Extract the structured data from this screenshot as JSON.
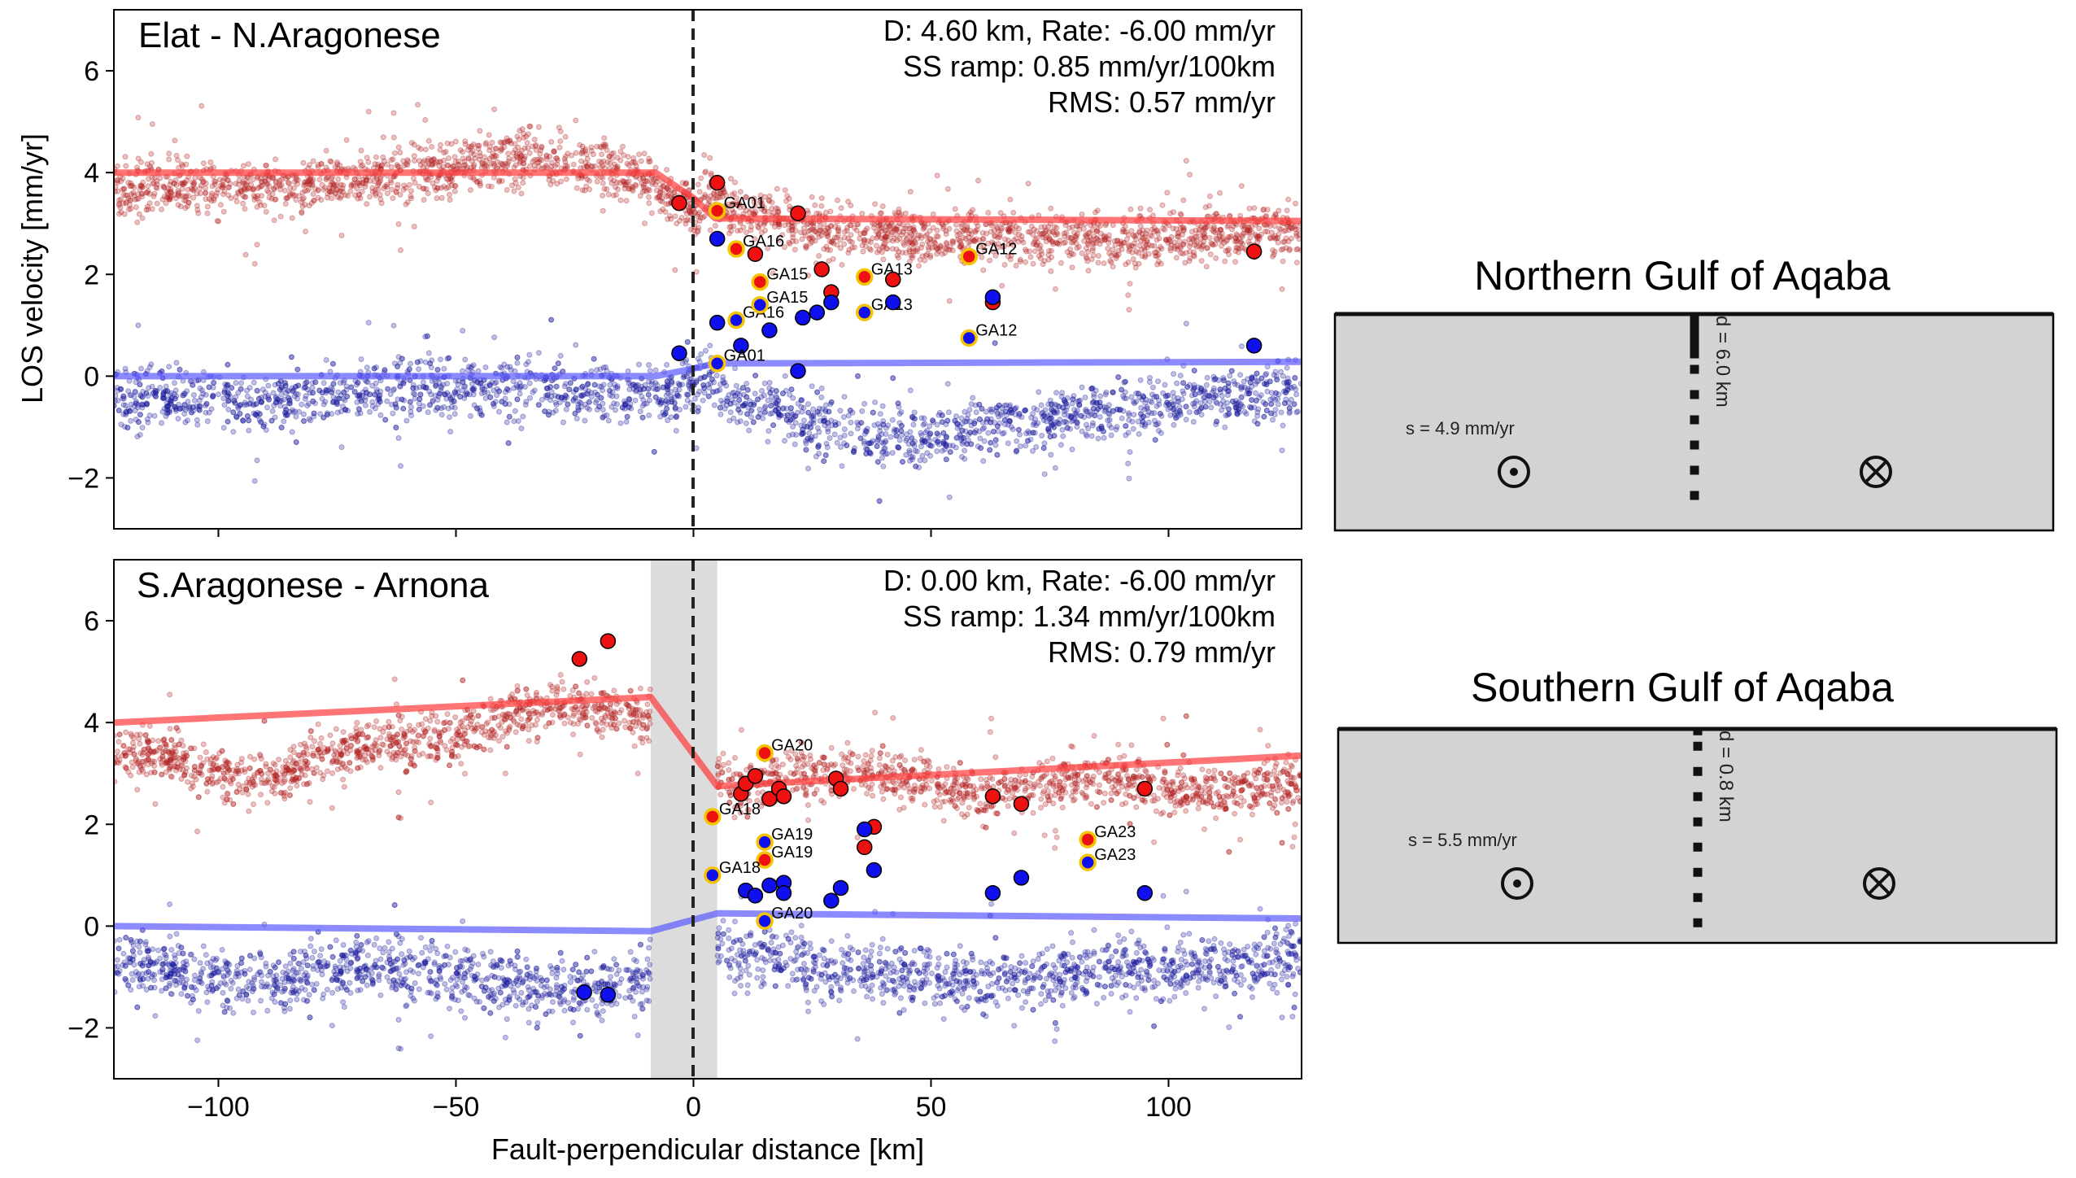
{
  "figure": {
    "x_axis_label": "Fault-perpendicular distance [km]",
    "y_axis_label": "LOS velocity [mm/yr]",
    "x_ticks": [
      -100,
      -50,
      0,
      50,
      100
    ],
    "y_ticks": [
      -2,
      0,
      2,
      4,
      6
    ]
  },
  "colors": {
    "red_points": "#b22222",
    "blue_points": "#1c1c9e",
    "red_model": "#ff3b3b",
    "blue_model": "#5a5aff",
    "station_red": "#ee1111",
    "station_blue": "#1010ee",
    "station_ring": "#f5c400",
    "fault_zone": "#dcdcdc",
    "diagram_fill": "#d3d3d3"
  },
  "chart_data": [
    {
      "type": "scatter",
      "title": "Elat - N.Aragonese",
      "annotation_lines": [
        "D: 4.60 km, Rate: -6.00 mm/yr",
        "SS ramp: 0.85 mm/yr/100km",
        "RMS: 0.57 mm/yr"
      ],
      "xlim": [
        -122,
        128
      ],
      "ylim": [
        -3,
        7.2
      ],
      "fault_zone": null,
      "model_lines": [
        {
          "color": "red",
          "x": [
            -122,
            -8,
            0,
            4.6,
            128
          ],
          "y": [
            4.0,
            4.0,
            3.5,
            3.1,
            3.05
          ]
        },
        {
          "color": "blue",
          "x": [
            -122,
            -8,
            0,
            4.6,
            128
          ],
          "y": [
            0.0,
            0.0,
            0.15,
            0.25,
            0.28
          ]
        }
      ],
      "bands": [
        {
          "color": "red",
          "x": [
            -122,
            -100,
            -80,
            -60,
            -45,
            -35,
            -20,
            -10,
            -4,
            0,
            5,
            10,
            20,
            30,
            40,
            50,
            60,
            70,
            80,
            90,
            100,
            110,
            120,
            128
          ],
          "y": [
            3.7,
            3.7,
            3.8,
            3.95,
            4.2,
            4.3,
            4.15,
            3.85,
            3.5,
            3.3,
            3.5,
            3.2,
            2.95,
            2.85,
            2.8,
            2.7,
            2.75,
            2.65,
            2.7,
            2.65,
            2.75,
            2.8,
            2.8,
            2.85
          ],
          "spread": 0.75
        },
        {
          "color": "blue",
          "x": [
            -122,
            -110,
            -90,
            -70,
            -50,
            -30,
            -15,
            -5,
            0,
            5,
            10,
            20,
            30,
            40,
            50,
            60,
            70,
            80,
            90,
            100,
            110,
            120,
            128
          ],
          "y": [
            -0.4,
            -0.45,
            -0.5,
            -0.3,
            -0.2,
            -0.25,
            -0.3,
            -0.3,
            -0.1,
            -0.3,
            -0.5,
            -0.8,
            -1.0,
            -1.2,
            -1.15,
            -1.0,
            -0.9,
            -0.8,
            -0.65,
            -0.5,
            -0.4,
            -0.35,
            -0.3
          ],
          "spread": 0.85
        }
      ],
      "stations": [
        {
          "x": -3,
          "y": 3.4,
          "color": "red",
          "ring": false,
          "label": ""
        },
        {
          "x": 5,
          "y": 3.8,
          "color": "red",
          "ring": false,
          "label": ""
        },
        {
          "x": 5,
          "y": 3.25,
          "color": "red",
          "ring": true,
          "label": "GA01"
        },
        {
          "x": 5,
          "y": 2.7,
          "color": "blue",
          "ring": false,
          "label": ""
        },
        {
          "x": 9,
          "y": 2.5,
          "color": "red",
          "ring": true,
          "label": "GA16"
        },
        {
          "x": 13,
          "y": 2.4,
          "color": "red",
          "ring": false,
          "label": ""
        },
        {
          "x": 22,
          "y": 3.2,
          "color": "red",
          "ring": false,
          "label": ""
        },
        {
          "x": 27,
          "y": 2.1,
          "color": "red",
          "ring": false,
          "label": ""
        },
        {
          "x": 14,
          "y": 1.85,
          "color": "red",
          "ring": true,
          "label": "GA15"
        },
        {
          "x": 29,
          "y": 1.65,
          "color": "red",
          "ring": false,
          "label": ""
        },
        {
          "x": 36,
          "y": 1.95,
          "color": "red",
          "ring": true,
          "label": "GA13"
        },
        {
          "x": 42,
          "y": 1.9,
          "color": "red",
          "ring": false,
          "label": ""
        },
        {
          "x": 58,
          "y": 2.35,
          "color": "red",
          "ring": true,
          "label": "GA12"
        },
        {
          "x": 63,
          "y": 1.45,
          "color": "red",
          "ring": false,
          "label": ""
        },
        {
          "x": 118,
          "y": 2.45,
          "color": "red",
          "ring": false,
          "label": ""
        },
        {
          "x": 5,
          "y": 1.05,
          "color": "blue",
          "ring": false,
          "label": ""
        },
        {
          "x": 9,
          "y": 1.1,
          "color": "blue",
          "ring": true,
          "label": "GA16"
        },
        {
          "x": 14,
          "y": 1.4,
          "color": "blue",
          "ring": true,
          "label": "GA15"
        },
        {
          "x": 10,
          "y": 0.6,
          "color": "blue",
          "ring": false,
          "label": ""
        },
        {
          "x": 16,
          "y": 0.9,
          "color": "blue",
          "ring": false,
          "label": ""
        },
        {
          "x": 23,
          "y": 1.15,
          "color": "blue",
          "ring": false,
          "label": ""
        },
        {
          "x": 26,
          "y": 1.25,
          "color": "blue",
          "ring": false,
          "label": ""
        },
        {
          "x": 29,
          "y": 1.45,
          "color": "blue",
          "ring": false,
          "label": ""
        },
        {
          "x": 36,
          "y": 1.25,
          "color": "blue",
          "ring": true,
          "label": "GA13"
        },
        {
          "x": 42,
          "y": 1.45,
          "color": "blue",
          "ring": false,
          "label": ""
        },
        {
          "x": 58,
          "y": 0.75,
          "color": "blue",
          "ring": true,
          "label": "GA12"
        },
        {
          "x": 63,
          "y": 1.55,
          "color": "blue",
          "ring": false,
          "label": ""
        },
        {
          "x": -3,
          "y": 0.45,
          "color": "blue",
          "ring": false,
          "label": ""
        },
        {
          "x": 5,
          "y": 0.25,
          "color": "blue",
          "ring": true,
          "label": "GA01"
        },
        {
          "x": 22,
          "y": 0.1,
          "color": "blue",
          "ring": false,
          "label": ""
        },
        {
          "x": 118,
          "y": 0.6,
          "color": "blue",
          "ring": false,
          "label": ""
        }
      ]
    },
    {
      "type": "scatter",
      "title": "S.Aragonese - Arnona",
      "annotation_lines": [
        "D: 0.00 km, Rate: -6.00 mm/yr",
        "SS ramp: 1.34 mm/yr/100km",
        "RMS: 0.79 mm/yr"
      ],
      "xlim": [
        -122,
        128
      ],
      "ylim": [
        -3,
        7.2
      ],
      "fault_zone": [
        -9,
        5
      ],
      "model_lines": [
        {
          "color": "red",
          "x": [
            -122,
            -9,
            5,
            128
          ],
          "y": [
            4.0,
            4.5,
            2.75,
            3.35
          ]
        },
        {
          "color": "blue",
          "x": [
            -122,
            -9,
            5,
            128
          ],
          "y": [
            0.0,
            -0.1,
            0.25,
            0.15
          ]
        }
      ],
      "bands": [
        {
          "color": "red",
          "x": [
            -122,
            -110,
            -100,
            -90,
            -80,
            -70,
            -60,
            -50,
            -40,
            -30,
            -20,
            -10,
            5,
            10,
            20,
            30,
            40,
            50,
            60,
            70,
            80,
            90,
            100,
            110,
            120,
            128
          ],
          "y": [
            3.4,
            3.3,
            3.0,
            2.8,
            3.3,
            3.5,
            3.6,
            3.7,
            4.1,
            4.4,
            4.2,
            4.1,
            3.0,
            2.7,
            2.95,
            3.1,
            3.0,
            2.8,
            2.6,
            2.75,
            2.9,
            2.9,
            2.7,
            2.6,
            2.8,
            2.7
          ],
          "spread": 0.75
        },
        {
          "color": "blue",
          "x": [
            -122,
            -110,
            -100,
            -90,
            -80,
            -70,
            -60,
            -50,
            -40,
            -30,
            -20,
            -10,
            5,
            10,
            20,
            30,
            40,
            50,
            60,
            70,
            80,
            90,
            100,
            110,
            120,
            128
          ],
          "y": [
            -0.7,
            -0.9,
            -1.0,
            -1.2,
            -0.9,
            -0.8,
            -0.9,
            -1.0,
            -1.1,
            -1.2,
            -1.3,
            -1.0,
            -0.4,
            -0.6,
            -0.7,
            -0.8,
            -0.9,
            -1.0,
            -1.05,
            -1.0,
            -0.9,
            -0.8,
            -0.85,
            -0.8,
            -0.7,
            -0.6
          ],
          "spread": 0.9
        }
      ],
      "stations": [
        {
          "x": -24,
          "y": 5.25,
          "color": "red",
          "ring": false,
          "label": ""
        },
        {
          "x": -18,
          "y": 5.6,
          "color": "red",
          "ring": false,
          "label": ""
        },
        {
          "x": 15,
          "y": 3.4,
          "color": "red",
          "ring": true,
          "label": "GA20"
        },
        {
          "x": 4,
          "y": 2.15,
          "color": "red",
          "ring": true,
          "label": "GA18"
        },
        {
          "x": 10,
          "y": 2.6,
          "color": "red",
          "ring": false,
          "label": ""
        },
        {
          "x": 11,
          "y": 2.8,
          "color": "red",
          "ring": false,
          "label": ""
        },
        {
          "x": 13,
          "y": 2.95,
          "color": "red",
          "ring": false,
          "label": ""
        },
        {
          "x": 16,
          "y": 2.5,
          "color": "red",
          "ring": false,
          "label": ""
        },
        {
          "x": 18,
          "y": 2.7,
          "color": "red",
          "ring": false,
          "label": ""
        },
        {
          "x": 19,
          "y": 2.55,
          "color": "red",
          "ring": false,
          "label": ""
        },
        {
          "x": 30,
          "y": 2.9,
          "color": "red",
          "ring": false,
          "label": ""
        },
        {
          "x": 31,
          "y": 2.7,
          "color": "red",
          "ring": false,
          "label": ""
        },
        {
          "x": 36,
          "y": 1.55,
          "color": "red",
          "ring": false,
          "label": ""
        },
        {
          "x": 38,
          "y": 1.95,
          "color": "red",
          "ring": false,
          "label": ""
        },
        {
          "x": 63,
          "y": 2.55,
          "color": "red",
          "ring": false,
          "label": ""
        },
        {
          "x": 69,
          "y": 2.4,
          "color": "red",
          "ring": false,
          "label": ""
        },
        {
          "x": 83,
          "y": 1.7,
          "color": "red",
          "ring": true,
          "label": "GA23"
        },
        {
          "x": 95,
          "y": 2.7,
          "color": "red",
          "ring": false,
          "label": ""
        },
        {
          "x": 15,
          "y": 1.65,
          "color": "blue",
          "ring": true,
          "label": "GA19"
        },
        {
          "x": 15,
          "y": 1.3,
          "color": "red",
          "ring": true,
          "label": "GA19"
        },
        {
          "x": 4,
          "y": 1.0,
          "color": "blue",
          "ring": true,
          "label": "GA18"
        },
        {
          "x": 36,
          "y": 1.9,
          "color": "blue",
          "ring": false,
          "label": ""
        },
        {
          "x": 38,
          "y": 1.1,
          "color": "blue",
          "ring": false,
          "label": ""
        },
        {
          "x": 83,
          "y": 1.25,
          "color": "blue",
          "ring": true,
          "label": "GA23"
        },
        {
          "x": 15,
          "y": 0.1,
          "color": "blue",
          "ring": true,
          "label": "GA20"
        },
        {
          "x": 11,
          "y": 0.7,
          "color": "blue",
          "ring": false,
          "label": ""
        },
        {
          "x": 13,
          "y": 0.6,
          "color": "blue",
          "ring": false,
          "label": ""
        },
        {
          "x": 16,
          "y": 0.8,
          "color": "blue",
          "ring": false,
          "label": ""
        },
        {
          "x": 19,
          "y": 0.85,
          "color": "blue",
          "ring": false,
          "label": ""
        },
        {
          "x": 19,
          "y": 0.65,
          "color": "blue",
          "ring": false,
          "label": ""
        },
        {
          "x": 29,
          "y": 0.5,
          "color": "blue",
          "ring": false,
          "label": ""
        },
        {
          "x": 31,
          "y": 0.75,
          "color": "blue",
          "ring": false,
          "label": ""
        },
        {
          "x": 63,
          "y": 0.65,
          "color": "blue",
          "ring": false,
          "label": ""
        },
        {
          "x": 69,
          "y": 0.95,
          "color": "blue",
          "ring": false,
          "label": ""
        },
        {
          "x": 95,
          "y": 0.65,
          "color": "blue",
          "ring": false,
          "label": ""
        },
        {
          "x": -23,
          "y": -1.3,
          "color": "blue",
          "ring": false,
          "label": ""
        },
        {
          "x": -18,
          "y": -1.35,
          "color": "blue",
          "ring": false,
          "label": ""
        }
      ]
    }
  ],
  "diagrams": [
    {
      "title": "Northern Gulf of Aqaba",
      "rate_label": "s = 4.9 mm/yr",
      "depth_label": "d = 6.0 km",
      "locked_fraction": 0.22
    },
    {
      "title": "Southern Gulf of Aqaba",
      "rate_label": "s = 5.5 mm/yr",
      "depth_label": "d = 0.8 km",
      "locked_fraction": 0.03
    }
  ]
}
